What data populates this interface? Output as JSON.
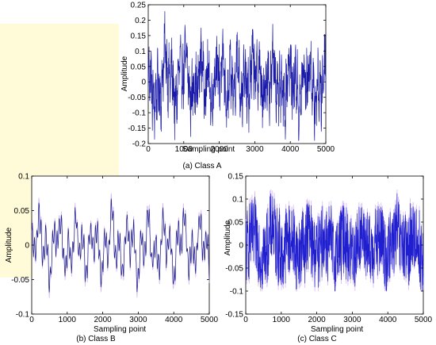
{
  "chart_data": [
    {
      "type": "line",
      "caption": "(a) Class A",
      "xlabel": "Sampling point",
      "ylabel": "Amplitude",
      "xlim": [
        0,
        5000
      ],
      "ylim": [
        -0.2,
        0.25
      ],
      "xticks": [
        0,
        1000,
        2000,
        3000,
        4000,
        5000
      ],
      "xtick_labels": [
        "0",
        "1000",
        "2000",
        "3000",
        "4000",
        "5000"
      ],
      "yticks": [
        -0.2,
        -0.15,
        -0.1,
        -0.05,
        0,
        0.05,
        0.1,
        0.15,
        0.2,
        0.25
      ],
      "ytick_labels": [
        "-0.2",
        "-0.15",
        "-0.1",
        "-0.05",
        "0",
        "0.05",
        "0.1",
        "0.15",
        "0.2",
        "0.25"
      ],
      "grid": false,
      "series": [
        {
          "color": "#1a1aa8",
          "n_points": 5000,
          "min": -0.19,
          "max": 0.23,
          "x": [
            0,
            250,
            500,
            750,
            1000,
            1250,
            1500,
            1750,
            2000,
            2250,
            2500,
            2750,
            3000,
            3250,
            3500,
            3750,
            4000,
            4250,
            4500,
            4750,
            5000
          ],
          "y": [
            0.02,
            -0.17,
            0.23,
            -0.15,
            0.19,
            -0.12,
            0.14,
            -0.1,
            0.17,
            -0.13,
            0.12,
            -0.11,
            0.18,
            -0.12,
            0.15,
            -0.19,
            0.13,
            -0.17,
            0.12,
            -0.18,
            0.15
          ]
        }
      ]
    },
    {
      "type": "line",
      "caption": "(b) Class B",
      "xlabel": "Sampling point",
      "ylabel": "Amplitude",
      "xlim": [
        0,
        5000
      ],
      "ylim": [
        -0.1,
        0.1
      ],
      "xticks": [
        0,
        1000,
        2000,
        3000,
        4000,
        5000
      ],
      "xtick_labels": [
        "0",
        "1000",
        "2000",
        "3000",
        "4000",
        "5000"
      ],
      "yticks": [
        -0.1,
        -0.05,
        0,
        0.05,
        0.1
      ],
      "ytick_labels": [
        "-0.1",
        "-0.05",
        "0",
        "0.05",
        "0.1"
      ],
      "grid": false,
      "series": [
        {
          "color": "#1a1a8c",
          "n_points": 5000,
          "min": -0.095,
          "max": 0.085,
          "x": [
            0,
            250,
            500,
            750,
            1000,
            1250,
            1500,
            1750,
            2000,
            2250,
            2500,
            2750,
            3000,
            3250,
            3500,
            3750,
            4000,
            4250,
            4500,
            4750,
            5000
          ],
          "y": [
            0.0,
            0.06,
            -0.095,
            0.08,
            -0.08,
            0.07,
            -0.07,
            0.05,
            -0.08,
            0.08,
            -0.07,
            0.06,
            -0.09,
            0.07,
            -0.07,
            0.07,
            -0.08,
            0.08,
            -0.07,
            0.06,
            -0.05
          ]
        }
      ]
    },
    {
      "type": "line",
      "caption": "(c) Class C",
      "xlabel": "Sampling point",
      "ylabel": "Amplitude",
      "xlim": [
        0,
        5000
      ],
      "ylim": [
        -0.15,
        0.15
      ],
      "xticks": [
        0,
        1000,
        2000,
        3000,
        4000,
        5000
      ],
      "xtick_labels": [
        "0",
        "1000",
        "2000",
        "3000",
        "4000",
        "5000"
      ],
      "yticks": [
        -0.15,
        -0.1,
        -0.05,
        0,
        0.05,
        0.1,
        0.15
      ],
      "ytick_labels": [
        "-0.15",
        "-0.1",
        "-0.05",
        "0",
        "0.05",
        "0.1",
        "0.15"
      ],
      "grid": false,
      "series": [
        {
          "color": "#1f1fd0",
          "n_points": 5000,
          "min": -0.1,
          "max": 0.12,
          "x": [
            0,
            250,
            500,
            750,
            1000,
            1250,
            1500,
            1750,
            2000,
            2250,
            2500,
            2750,
            3000,
            3250,
            3500,
            3750,
            4000,
            4250,
            4500,
            4750,
            5000
          ],
          "y": [
            0.0,
            0.06,
            -0.08,
            0.12,
            -0.07,
            0.06,
            -0.06,
            0.07,
            -0.06,
            0.06,
            -0.07,
            0.06,
            -0.06,
            0.07,
            -0.06,
            0.05,
            -0.07,
            0.08,
            -0.06,
            0.07,
            -0.1
          ]
        }
      ]
    }
  ]
}
